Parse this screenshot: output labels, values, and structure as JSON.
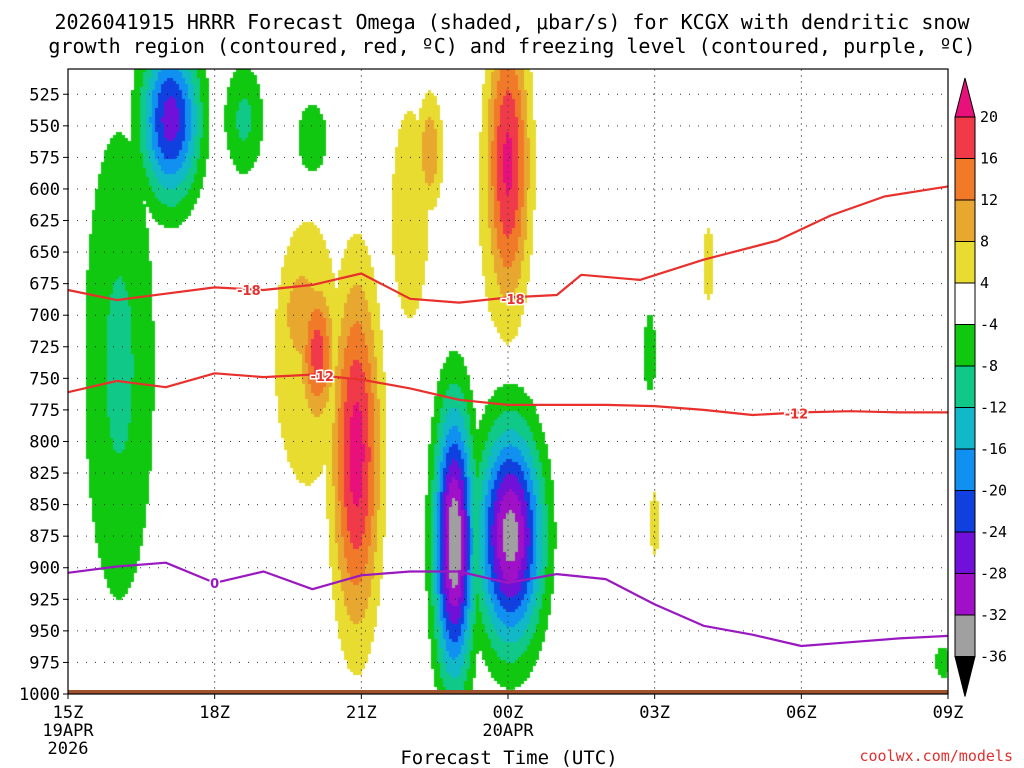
{
  "chart_data": {
    "type": "time-height contour",
    "title_line1": "2026041915 HRRR Forecast Omega (shaded, μbar/s) for KCGX with dendritic snow",
    "title_line2": "growth region (contoured, red, ºC) and freezing level (contoured, purple, ºC)",
    "xlabel": "Forecast Time (UTC)",
    "credit": "coolwx.com/models",
    "ylim": [
      1000,
      505
    ],
    "xlim_hours": [
      0,
      18
    ],
    "y_ticks": [
      525,
      550,
      575,
      600,
      625,
      650,
      675,
      700,
      725,
      750,
      775,
      800,
      825,
      850,
      875,
      900,
      925,
      950,
      975,
      1000
    ],
    "x_ticks": [
      {
        "hour": 0,
        "label": "15Z",
        "sub1": "19APR",
        "sub2": "2026"
      },
      {
        "hour": 3,
        "label": "18Z",
        "sub1": "",
        "sub2": ""
      },
      {
        "hour": 6,
        "label": "21Z",
        "sub1": "",
        "sub2": ""
      },
      {
        "hour": 9,
        "label": "00Z",
        "sub1": "20APR",
        "sub2": ""
      },
      {
        "hour": 12,
        "label": "03Z",
        "sub1": "",
        "sub2": ""
      },
      {
        "hour": 15,
        "label": "06Z",
        "sub1": "",
        "sub2": ""
      },
      {
        "hour": 18,
        "label": "09Z",
        "sub1": "",
        "sub2": ""
      }
    ],
    "colorbar": {
      "labels": [
        "20",
        "16",
        "12",
        "8",
        "4",
        "-4",
        "-8",
        "-12",
        "-16",
        "-20",
        "-24",
        "-28",
        "-32",
        "-36"
      ],
      "bands": [
        {
          "lo": 16,
          "hi": 20,
          "color": "#f03a4a"
        },
        {
          "lo": 12,
          "hi": 16,
          "color": "#f07a28"
        },
        {
          "lo": 8,
          "hi": 12,
          "color": "#e8a830"
        },
        {
          "lo": 4,
          "hi": 8,
          "color": "#e8dc30"
        },
        {
          "lo": -4,
          "hi": 4,
          "color": "#ffffff"
        },
        {
          "lo": -8,
          "hi": -4,
          "color": "#10c810"
        },
        {
          "lo": -12,
          "hi": -8,
          "color": "#10c888"
        },
        {
          "lo": -16,
          "hi": -12,
          "color": "#10b8c8"
        },
        {
          "lo": -20,
          "hi": -16,
          "color": "#1090f0"
        },
        {
          "lo": -24,
          "hi": -20,
          "color": "#1040e0"
        },
        {
          "lo": -28,
          "hi": -24,
          "color": "#7010d8"
        },
        {
          "lo": -32,
          "hi": -28,
          "color": "#a010c8"
        },
        {
          "lo": -36,
          "hi": -32,
          "color": "#a0a0a0"
        }
      ],
      "top_color": "#e8107a",
      "bottom_color": "#000000"
    },
    "omega_features": [
      {
        "t": 1.05,
        "p": 740,
        "rt": 1.0,
        "rp": 260,
        "v": -9
      },
      {
        "t": 2.1,
        "p": 545,
        "rt": 0.75,
        "rp": 80,
        "v": -26
      },
      {
        "t": 1.1,
        "p": 705,
        "rt": 0.35,
        "rp": 60,
        "v": -12
      },
      {
        "t": 3.6,
        "p": 545,
        "rt": 0.55,
        "rp": 60,
        "v": -9
      },
      {
        "t": 5.0,
        "p": 560,
        "rt": 0.8,
        "rp": 70,
        "v": -5
      },
      {
        "t": 4.9,
        "p": 730,
        "rt": 1.8,
        "rp": 280,
        "v": 5
      },
      {
        "t": 4.8,
        "p": 700,
        "rt": 0.6,
        "rp": 60,
        "v": 12
      },
      {
        "t": 5.9,
        "p": 810,
        "rt": 0.6,
        "rp": 170,
        "v": 22
      },
      {
        "t": 5.1,
        "p": 730,
        "rt": 0.45,
        "rp": 70,
        "v": 18
      },
      {
        "t": 7.0,
        "p": 620,
        "rt": 1.0,
        "rp": 220,
        "v": 5
      },
      {
        "t": 7.4,
        "p": 570,
        "rt": 0.35,
        "rp": 60,
        "v": 11
      },
      {
        "t": 8.9,
        "p": 600,
        "rt": 1.0,
        "rp": 230,
        "v": 6
      },
      {
        "t": 9.0,
        "p": 580,
        "rt": 0.55,
        "rp": 140,
        "v": 21
      },
      {
        "t": 7.9,
        "p": 880,
        "rt": 0.5,
        "rp": 130,
        "v": -36
      },
      {
        "t": 9.05,
        "p": 875,
        "rt": 0.8,
        "rp": 105,
        "v": -34
      },
      {
        "t": 11.9,
        "p": 730,
        "rt": 0.25,
        "rp": 60,
        "v": -6
      },
      {
        "t": 13.1,
        "p": 660,
        "rt": 0.3,
        "rp": 75,
        "v": 5
      },
      {
        "t": 12.0,
        "p": 865,
        "rt": 0.25,
        "rp": 65,
        "v": 5
      },
      {
        "t": 1.6,
        "p": 720,
        "rt": 0.15,
        "rp": 55,
        "v": 5
      },
      {
        "t": 17.9,
        "p": 975,
        "rt": 0.3,
        "rp": 25,
        "v": -6
      }
    ],
    "dgz_contours": [
      {
        "label": "-18",
        "points": [
          [
            0,
            680
          ],
          [
            1,
            688
          ],
          [
            2,
            683
          ],
          [
            3,
            678
          ],
          [
            4,
            680
          ],
          [
            5,
            676
          ],
          [
            6,
            667
          ],
          [
            7,
            687
          ],
          [
            8,
            690
          ],
          [
            9,
            686
          ],
          [
            10,
            684
          ],
          [
            10.5,
            668
          ],
          [
            11.7,
            672
          ],
          [
            13,
            656
          ],
          [
            14.5,
            641
          ],
          [
            15.6,
            621
          ],
          [
            16.7,
            606
          ],
          [
            18,
            598
          ]
        ]
      },
      {
        "label": "-12",
        "points": [
          [
            0,
            761
          ],
          [
            1,
            752
          ],
          [
            2,
            757
          ],
          [
            3,
            746
          ],
          [
            4,
            749
          ],
          [
            5,
            747
          ],
          [
            6,
            751
          ],
          [
            7,
            758
          ],
          [
            8,
            767
          ],
          [
            9,
            771
          ],
          [
            10,
            771
          ],
          [
            11,
            771
          ],
          [
            12,
            772
          ],
          [
            13,
            775
          ],
          [
            14,
            779
          ],
          [
            15,
            777
          ],
          [
            16,
            776
          ],
          [
            17,
            777
          ],
          [
            18,
            777
          ]
        ]
      }
    ],
    "freezing_level": {
      "label": "0",
      "points": [
        [
          0,
          904
        ],
        [
          1,
          899
        ],
        [
          2,
          896
        ],
        [
          3,
          912
        ],
        [
          4,
          903
        ],
        [
          5,
          917
        ],
        [
          6,
          906
        ],
        [
          7,
          903
        ],
        [
          8,
          903
        ],
        [
          9,
          912
        ],
        [
          10,
          905
        ],
        [
          11,
          909
        ],
        [
          12,
          929
        ],
        [
          13,
          946
        ],
        [
          14,
          953
        ],
        [
          15,
          962
        ],
        [
          16,
          959
        ],
        [
          17,
          956
        ],
        [
          18,
          954
        ]
      ]
    },
    "ground_layer": {
      "color": "#a0522d",
      "pressure": 1000
    }
  }
}
